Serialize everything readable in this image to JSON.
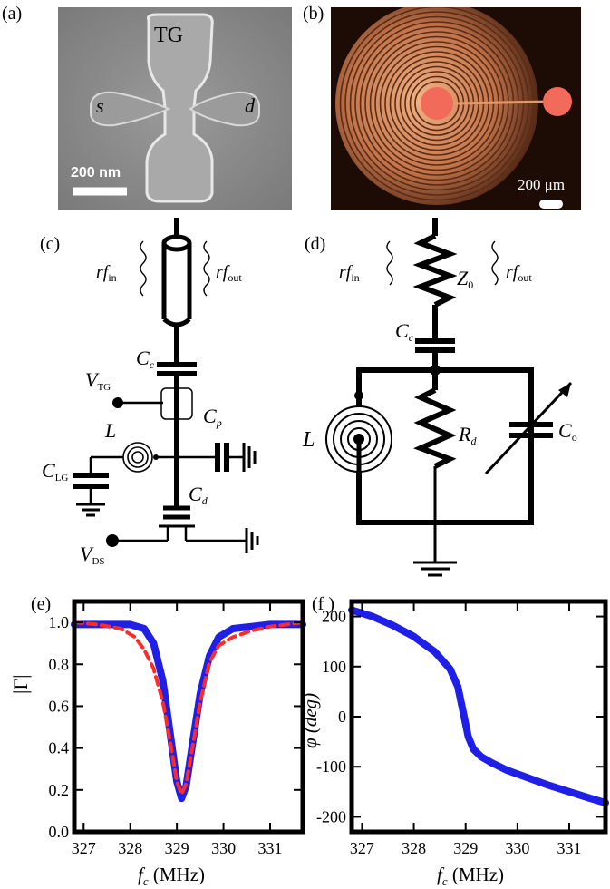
{
  "panels": {
    "a": "(a)",
    "b": "(b)",
    "c": "(c)",
    "d": "(d)",
    "e": "(e)",
    "f": "(f )"
  },
  "sem": {
    "gate_label": "TG",
    "source_label": "s",
    "drain_label": "d",
    "scale_bar": "200 nm"
  },
  "micrograph": {
    "scale_bar": "200 μm"
  },
  "circuit_c": {
    "rf_in": "rf",
    "rf_in_sub": "in",
    "rf_out": "rf",
    "rf_out_sub": "out",
    "cc": "C",
    "cc_sub": "c",
    "vtg": "V",
    "vtg_sub": "TG",
    "cp": "C",
    "cp_sub": "p",
    "l": "L",
    "clg": "C",
    "clg_sub": "LG",
    "cd": "C",
    "cd_sub": "d",
    "vds": "V",
    "vds_sub": "DS"
  },
  "circuit_d": {
    "rf_in": "rf",
    "rf_in_sub": "in",
    "rf_out": "rf",
    "rf_out_sub": "out",
    "z0": "Z",
    "z0_sub": "0",
    "cc": "C",
    "cc_sub": "c",
    "l": "L",
    "rd": "R",
    "rd_sub": "d",
    "co": "C",
    "co_sub": "o"
  },
  "chart_data": [
    {
      "type": "line",
      "ylabel": "|Γ|",
      "xlabel": "f",
      "xlabel_sub": "c",
      "xlabel_unit": " (MHz)",
      "xlim": [
        326.8,
        331.7
      ],
      "ylim": [
        0.0,
        1.1
      ],
      "xticks": [
        327,
        328,
        329,
        330,
        331
      ],
      "yticks": [
        0.0,
        0.2,
        0.4,
        0.6,
        0.8,
        1.0
      ],
      "ytick_labels": [
        "0.0",
        "0.2",
        "0.4",
        "0.6",
        "0.8",
        "1.0"
      ],
      "series": [
        {
          "color": "#1f1fe6",
          "style": "solid",
          "x": [
            326.8,
            327.5,
            328.0,
            328.3,
            328.5,
            328.7,
            328.85,
            329.0,
            329.1,
            329.2,
            329.35,
            329.5,
            329.7,
            329.9,
            330.2,
            330.6,
            331.0,
            331.7
          ],
          "y": [
            0.99,
            0.99,
            0.99,
            0.97,
            0.9,
            0.72,
            0.48,
            0.24,
            0.16,
            0.22,
            0.44,
            0.66,
            0.84,
            0.93,
            0.97,
            0.98,
            0.99,
            0.99
          ]
        },
        {
          "color": "#ff2a2a",
          "style": "dashed",
          "x": [
            326.8,
            327.3,
            327.8,
            328.1,
            328.3,
            328.5,
            328.7,
            328.85,
            329.0,
            329.1,
            329.2,
            329.35,
            329.5,
            329.7,
            329.9,
            330.2,
            330.6,
            331.0,
            331.7
          ],
          "y": [
            1.0,
            0.99,
            0.97,
            0.93,
            0.87,
            0.78,
            0.62,
            0.44,
            0.24,
            0.18,
            0.23,
            0.42,
            0.62,
            0.81,
            0.89,
            0.93,
            0.96,
            0.98,
            1.0
          ]
        }
      ]
    },
    {
      "type": "line",
      "ylabel": "φ (deg)",
      "xlabel": "f",
      "xlabel_sub": "c",
      "xlabel_unit": " (MHz)",
      "xlim": [
        326.8,
        331.7
      ],
      "ylim": [
        -230,
        230
      ],
      "xticks": [
        327,
        328,
        329,
        330,
        331
      ],
      "yticks": [
        -200,
        -100,
        0,
        100,
        200
      ],
      "ytick_labels": [
        "-200",
        "-100",
        "0",
        "100",
        "200"
      ],
      "series": [
        {
          "color": "#1f1fe6",
          "style": "solid",
          "x": [
            326.8,
            327.2,
            327.6,
            328.0,
            328.4,
            328.7,
            328.85,
            328.95,
            329.05,
            329.15,
            329.3,
            329.5,
            329.8,
            330.2,
            330.6,
            331.0,
            331.4,
            331.7
          ],
          "y": [
            213,
            200,
            182,
            160,
            130,
            95,
            60,
            10,
            -40,
            -65,
            -80,
            -92,
            -107,
            -122,
            -137,
            -150,
            -163,
            -172
          ]
        }
      ]
    }
  ]
}
